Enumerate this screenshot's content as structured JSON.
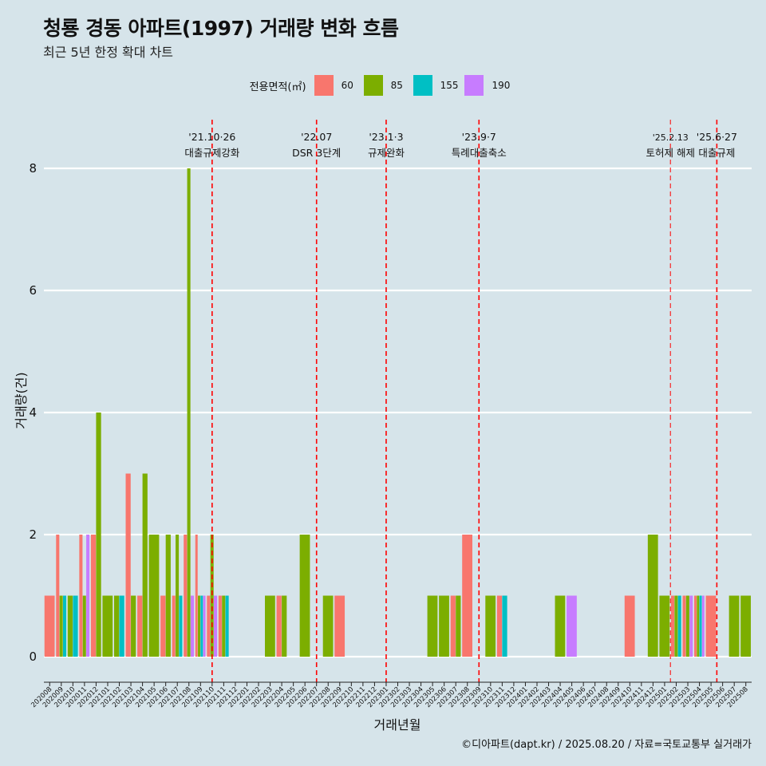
{
  "title": "청룡 경동 아파트(1997) 거래량 변화 흐름",
  "subtitle": "최근 5년 한정 확대 차트",
  "caption": "©디아파트(dapt.kr) / 2025.08.20 / 자료=국토교통부 실거래가",
  "legend": {
    "title": "전용면적(㎡)",
    "items": [
      {
        "label": "60",
        "color": "#f8766d"
      },
      {
        "label": "85",
        "color": "#7cae00"
      },
      {
        "label": "155",
        "color": "#00bfc4"
      },
      {
        "label": "190",
        "color": "#c77cff"
      }
    ]
  },
  "chart_data": {
    "type": "bar",
    "xlabel": "거래년월",
    "ylabel": "거래량(건)",
    "ylim": [
      0,
      8
    ],
    "yticks": [
      0,
      2,
      4,
      6,
      8
    ],
    "categories": [
      "202008",
      "202009",
      "202010",
      "202011",
      "202012",
      "202101",
      "202102",
      "202103",
      "202104",
      "202105",
      "202106",
      "202107",
      "202108",
      "202109",
      "202110",
      "202111",
      "202112",
      "202201",
      "202202",
      "202203",
      "202204",
      "202205",
      "202206",
      "202207",
      "202208",
      "202209",
      "202210",
      "202211",
      "202212",
      "202301",
      "202302",
      "202303",
      "202304",
      "202305",
      "202306",
      "202307",
      "202308",
      "202309",
      "202310",
      "202311",
      "202312",
      "202401",
      "202402",
      "202403",
      "202404",
      "202405",
      "202406",
      "202407",
      "202408",
      "202409",
      "202410",
      "202411",
      "202412",
      "202501",
      "202502",
      "202503",
      "202504",
      "202505",
      "202506",
      "202507",
      "202508"
    ],
    "series": [
      {
        "name": "60",
        "color": "#f8766d",
        "values": [
          1,
          2,
          0,
          2,
          2,
          0,
          0,
          3,
          1,
          0,
          1,
          1,
          2,
          2,
          1,
          1,
          0,
          0,
          0,
          0,
          1,
          0,
          0,
          0,
          0,
          1,
          0,
          0,
          0,
          0,
          0,
          0,
          0,
          0,
          0,
          1,
          2,
          0,
          0,
          1,
          0,
          0,
          0,
          0,
          0,
          0,
          0,
          0,
          0,
          0,
          1,
          0,
          0,
          0,
          1,
          1,
          1,
          1,
          0,
          0,
          0
        ]
      },
      {
        "name": "85",
        "color": "#7cae00",
        "values": [
          0,
          1,
          1,
          1,
          4,
          1,
          1,
          1,
          3,
          2,
          2,
          2,
          8,
          1,
          2,
          1,
          0,
          0,
          0,
          1,
          1,
          0,
          2,
          0,
          1,
          0,
          0,
          0,
          0,
          0,
          0,
          0,
          0,
          1,
          1,
          1,
          0,
          0,
          1,
          0,
          0,
          0,
          0,
          0,
          1,
          0,
          0,
          0,
          0,
          0,
          0,
          0,
          2,
          1,
          1,
          1,
          1,
          0,
          0,
          1,
          1
        ]
      },
      {
        "name": "155",
        "color": "#00bfc4",
        "values": [
          0,
          1,
          1,
          0,
          0,
          0,
          1,
          0,
          0,
          0,
          0,
          1,
          0,
          1,
          0,
          1,
          0,
          0,
          0,
          0,
          0,
          0,
          0,
          0,
          0,
          0,
          0,
          0,
          0,
          0,
          0,
          0,
          0,
          0,
          0,
          0,
          0,
          0,
          0,
          1,
          0,
          0,
          0,
          0,
          0,
          0,
          0,
          0,
          0,
          0,
          0,
          0,
          0,
          0,
          1,
          0,
          1,
          0,
          0,
          0,
          0
        ]
      },
      {
        "name": "190",
        "color": "#c77cff",
        "values": [
          0,
          0,
          0,
          2,
          0,
          0,
          0,
          0,
          0,
          0,
          0,
          0,
          1,
          1,
          1,
          0,
          0,
          0,
          0,
          0,
          0,
          0,
          0,
          0,
          0,
          0,
          0,
          0,
          0,
          0,
          0,
          0,
          0,
          0,
          0,
          0,
          0,
          0,
          0,
          0,
          0,
          0,
          0,
          0,
          0,
          1,
          0,
          0,
          0,
          0,
          0,
          0,
          0,
          0,
          0,
          1,
          1,
          0,
          0,
          0,
          0
        ]
      }
    ],
    "annotations": [
      {
        "x": 14.5,
        "line1": "'21.10·26",
        "line2": "대출규제강화"
      },
      {
        "x": 23.5,
        "line1": "'22.07",
        "line2": "DSR 3단계"
      },
      {
        "x": 29.5,
        "line1": "'23.1·3",
        "line2": "규제완화"
      },
      {
        "x": 37.5,
        "line1": "'23.9·7",
        "line2": "특례대출축소"
      },
      {
        "x": 54.0,
        "line1": "'25.2.13",
        "line2": "토허제 해제",
        "thin": true
      },
      {
        "x": 58.0,
        "line1": "'25.6·27",
        "line2": "대출규제"
      }
    ]
  }
}
